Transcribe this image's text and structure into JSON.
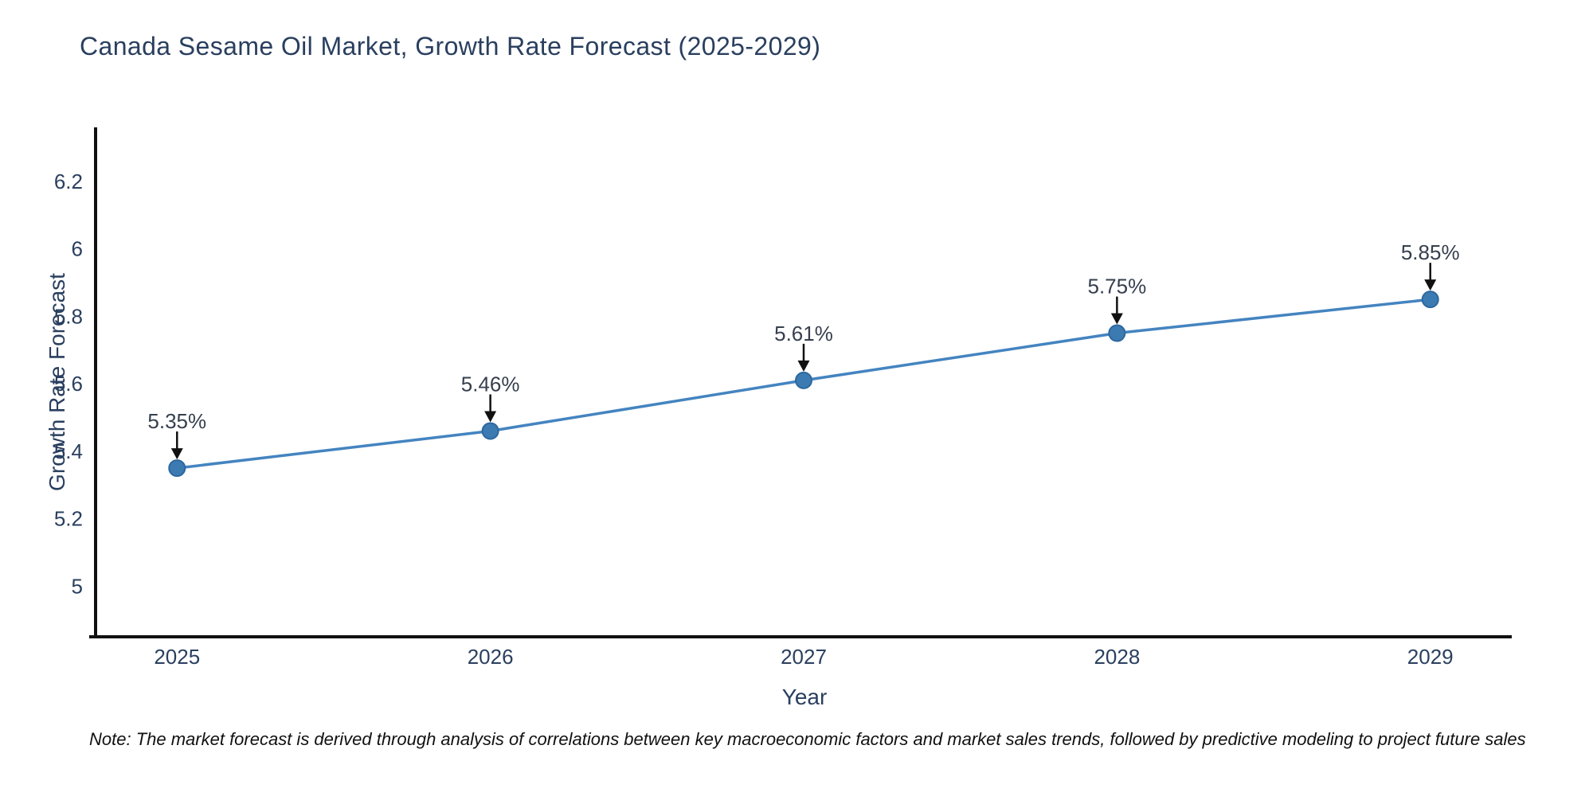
{
  "title": "Canada Sesame Oil Market, Growth Rate Forecast (2025-2029)",
  "note": "Note: The market forecast is derived through analysis of correlations between key macroeconomic factors and market sales trends, followed by predictive modeling to project future sales",
  "chart_data": {
    "type": "line",
    "title": "Canada Sesame Oil Market, Growth Rate Forecast (2025-2029)",
    "x": [
      2025,
      2026,
      2027,
      2028,
      2029
    ],
    "series": [
      {
        "name": "Growth Rate Forecast",
        "values": [
          5.35,
          5.46,
          5.61,
          5.75,
          5.85
        ]
      }
    ],
    "point_labels": [
      "5.35%",
      "5.46%",
      "5.61%",
      "5.75%",
      "5.85%"
    ],
    "xlabel": "Year",
    "ylabel": "Growth Rate Forecast",
    "xticks": [
      2025,
      2026,
      2027,
      2028,
      2029
    ],
    "yticks": [
      5,
      5.2,
      5.4,
      5.6,
      5.8,
      6,
      6.2
    ],
    "xlim": [
      2024.74,
      2029.26
    ],
    "ylim": [
      4.85,
      6.36
    ],
    "grid": false,
    "legend": "none",
    "annotations": "value labels with down arrows above each point",
    "colors": {
      "line": "#4484c0",
      "marker_fill": "#3c7ab2",
      "marker_edge": "#2d689f",
      "axis_line": "#111111",
      "tick_text": "#2a3f5f",
      "annotation_text": "#363f4d",
      "arrow": "#111111"
    }
  }
}
